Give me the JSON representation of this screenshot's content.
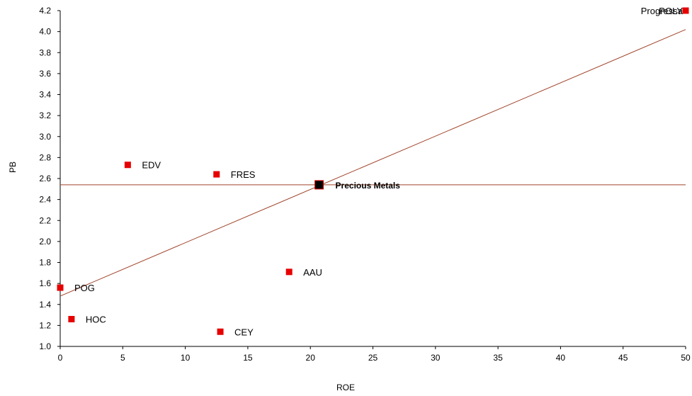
{
  "chart_data": {
    "type": "scatter",
    "xlabel": "ROE",
    "ylabel": "PB",
    "xlim": [
      0,
      50
    ],
    "ylim": [
      1.0,
      4.2
    ],
    "xticks": [
      "0",
      "5",
      "10",
      "15",
      "20",
      "25",
      "30",
      "35",
      "40",
      "45",
      "50"
    ],
    "yticks": [
      "1.0",
      "1.2",
      "1.4",
      "1.6",
      "1.8",
      "2.0",
      "2.2",
      "2.4",
      "2.6",
      "2.8",
      "3.0",
      "3.2",
      "3.4",
      "3.6",
      "3.8",
      "4.0",
      "4.2"
    ],
    "points": [
      {
        "label": "EDV",
        "x": 5.4,
        "y": 2.73
      },
      {
        "label": "FRES",
        "x": 12.5,
        "y": 2.64
      },
      {
        "label": "AAU",
        "x": 18.3,
        "y": 1.71
      },
      {
        "label": "POG",
        "x": 0.0,
        "y": 1.56
      },
      {
        "label": "HOC",
        "x": 0.9,
        "y": 1.26
      },
      {
        "label": "CEY",
        "x": 12.8,
        "y": 1.14
      },
      {
        "label": "POLY",
        "x": 50.0,
        "y": 4.2
      },
      {
        "label": "Progressa",
        "x": 50.0,
        "y": 4.2
      }
    ],
    "benchmark": {
      "label": "Precious Metals",
      "x": 20.7,
      "y": 2.54
    },
    "hline_y": 2.54,
    "trendline": {
      "x0": 0,
      "y0": 1.48,
      "x1": 50,
      "y1": 4.02
    },
    "colors": {
      "point": "#e60000",
      "benchmark": "#000000",
      "line": "#a0432a",
      "axis": "#000000"
    }
  }
}
